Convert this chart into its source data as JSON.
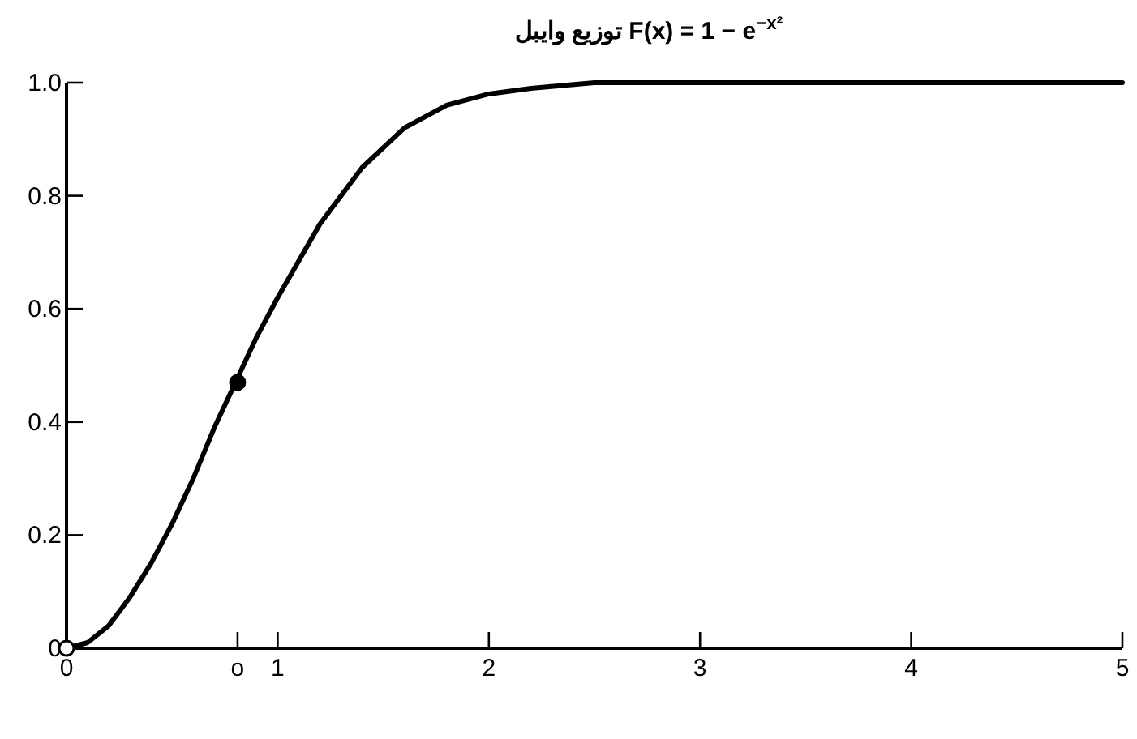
{
  "chart_data": {
    "type": "line",
    "title": "توزیع وایبل    F(x) = 1 − e$^{−x²}$",
    "xlim": [
      0,
      5
    ],
    "ylim": [
      0,
      1.0
    ],
    "xticks": [
      0,
      {
        "value": 0.81,
        "label": "o"
      },
      1,
      2,
      3,
      4,
      5
    ],
    "yticks": [
      0,
      0.2,
      0.4,
      0.6,
      0.8,
      {
        "value": 1.0,
        "label": "1.0"
      }
    ],
    "marker": "none",
    "line_style": "solid",
    "series": [
      {
        "color": "#000000",
        "x": [
          0,
          0.1,
          0.2,
          0.3,
          0.4,
          0.5,
          0.6,
          0.7,
          0.8,
          0.9,
          1.0,
          1.2,
          1.4,
          1.6,
          1.8,
          2.0,
          2.2,
          2.5,
          3,
          4,
          5
        ],
        "values": [
          0,
          0.01,
          0.04,
          0.09,
          0.15,
          0.22,
          0.3,
          0.39,
          0.47,
          0.55,
          0.62,
          0.75,
          0.85,
          0.92,
          0.96,
          0.98,
          0.99,
          1.0,
          1.0,
          1.0,
          1.0
        ]
      },
      {
        "type": "scatter",
        "marker": "circle",
        "color": "#000000",
        "colors": [
          "#ffffff",
          "#000000"
        ],
        "x": [
          0,
          0.81
        ],
        "values": [
          0,
          0.47
        ]
      }
    ]
  }
}
